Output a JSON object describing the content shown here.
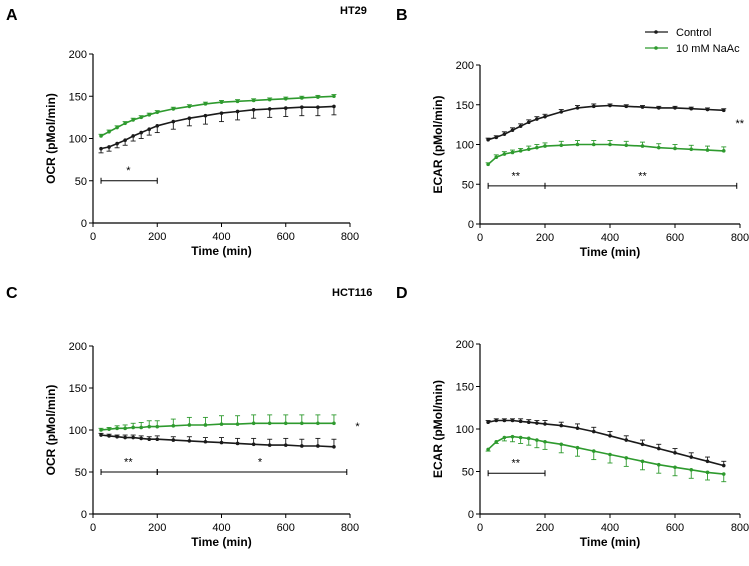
{
  "figure": {
    "cell_lines": [
      "HT29",
      "HCT116"
    ]
  },
  "legend": {
    "entries": [
      {
        "label": "Control",
        "color": "#1a1a1a"
      },
      {
        "label": "10 mM NaAc",
        "color": "#2e9a2e"
      }
    ]
  },
  "colors": {
    "control": "#1a1a1a",
    "naac": "#2e9a2e"
  },
  "chart_data": [
    {
      "panel": "A",
      "cell_line": "HT29",
      "type": "line",
      "xlabel": "Time (min)",
      "ylabel": "OCR (pMol/min)",
      "xlim": [
        0,
        800
      ],
      "ylim": [
        0,
        200
      ],
      "xticks": [
        "0",
        "200",
        "400",
        "600",
        "800"
      ],
      "yticks": [
        "0",
        "50",
        "100",
        "150",
        "200"
      ],
      "series": [
        {
          "name": "Control",
          "x": [
            25,
            50,
            75,
            100,
            125,
            150,
            175,
            200,
            250,
            300,
            350,
            400,
            450,
            500,
            550,
            600,
            650,
            700,
            750
          ],
          "y": [
            88,
            90,
            94,
            98,
            103,
            107,
            111,
            115,
            120,
            124,
            127,
            130,
            132,
            134,
            135,
            136,
            137,
            137,
            138
          ],
          "err": [
            5,
            5,
            5,
            6,
            6,
            7,
            7,
            8,
            9,
            9,
            10,
            10,
            10,
            10,
            10,
            10,
            10,
            10,
            10
          ]
        },
        {
          "name": "10 mM NaAc",
          "x": [
            25,
            50,
            75,
            100,
            125,
            150,
            175,
            200,
            250,
            300,
            350,
            400,
            450,
            500,
            550,
            600,
            650,
            700,
            750
          ],
          "y": [
            103,
            108,
            113,
            118,
            122,
            125,
            128,
            131,
            135,
            138,
            141,
            143,
            144,
            145,
            146,
            147,
            148,
            149,
            150
          ],
          "err": [
            2,
            2,
            2,
            2,
            2,
            2,
            2,
            2,
            2,
            2,
            2,
            2,
            2,
            2,
            2,
            2,
            2,
            2,
            2
          ]
        }
      ],
      "brackets": [
        {
          "x1": 25,
          "x2": 200,
          "y": 50,
          "label": "*",
          "label_x": 110,
          "label_y": 58
        }
      ],
      "side_annotation": null
    },
    {
      "panel": "B",
      "cell_line": "HT29",
      "type": "line",
      "xlabel": "Time (min)",
      "ylabel": "ECAR (pMol/min)",
      "xlim": [
        0,
        800
      ],
      "ylim": [
        0,
        200
      ],
      "xticks": [
        "0",
        "200",
        "400",
        "600",
        "800"
      ],
      "yticks": [
        "0",
        "50",
        "100",
        "150",
        "200"
      ],
      "series": [
        {
          "name": "Control",
          "x": [
            25,
            50,
            75,
            100,
            125,
            150,
            175,
            200,
            250,
            300,
            350,
            400,
            450,
            500,
            550,
            600,
            650,
            700,
            750
          ],
          "y": [
            106,
            109,
            113,
            118,
            123,
            128,
            132,
            135,
            141,
            146,
            148,
            149,
            148,
            147,
            146,
            146,
            145,
            144,
            143
          ],
          "err": [
            2,
            2,
            3,
            3,
            3,
            3,
            3,
            3,
            3,
            3,
            3,
            2,
            2,
            2,
            2,
            2,
            2,
            2,
            2
          ]
        },
        {
          "name": "10 mM NaAc",
          "x": [
            25,
            50,
            75,
            100,
            125,
            150,
            175,
            200,
            250,
            300,
            350,
            400,
            450,
            500,
            550,
            600,
            650,
            700,
            750
          ],
          "y": [
            75,
            84,
            88,
            90,
            92,
            94,
            96,
            98,
            99,
            100,
            100,
            100,
            99,
            98,
            96,
            95,
            94,
            93,
            92
          ],
          "err": [
            2,
            3,
            3,
            3,
            3,
            4,
            4,
            4,
            5,
            5,
            5,
            5,
            5,
            5,
            5,
            5,
            5,
            5,
            5
          ]
        }
      ],
      "brackets": [
        {
          "x1": 25,
          "x2": 200,
          "y": 48,
          "label": "**",
          "label_x": 110,
          "label_y": 56
        },
        {
          "x1": 200,
          "x2": 790,
          "y": 48,
          "label": "**",
          "label_x": 500,
          "label_y": 56
        }
      ],
      "side_annotation": {
        "label": "**",
        "x": 830,
        "y": 122
      }
    },
    {
      "panel": "C",
      "cell_line": "HCT116",
      "type": "line",
      "xlabel": "Time (min)",
      "ylabel": "OCR (pMol/min)",
      "xlim": [
        0,
        800
      ],
      "ylim": [
        0,
        200
      ],
      "xticks": [
        "0",
        "200",
        "400",
        "600",
        "800"
      ],
      "yticks": [
        "0",
        "50",
        "100",
        "150",
        "200"
      ],
      "series": [
        {
          "name": "Control",
          "x": [
            25,
            50,
            75,
            100,
            125,
            150,
            175,
            200,
            250,
            300,
            350,
            400,
            450,
            500,
            550,
            600,
            650,
            700,
            750
          ],
          "y": [
            94,
            93,
            92,
            91,
            91,
            90,
            89,
            89,
            88,
            87,
            86,
            85,
            84,
            83,
            82,
            82,
            81,
            81,
            80
          ],
          "err": [
            2,
            2,
            2,
            3,
            3,
            3,
            3,
            4,
            4,
            5,
            5,
            6,
            6,
            7,
            7,
            8,
            8,
            9,
            9
          ]
        },
        {
          "name": "10 mM NaAc",
          "x": [
            25,
            50,
            75,
            100,
            125,
            150,
            175,
            200,
            250,
            300,
            350,
            400,
            450,
            500,
            550,
            600,
            650,
            700,
            750
          ],
          "y": [
            100,
            101,
            102,
            102,
            103,
            103,
            104,
            104,
            105,
            106,
            106,
            107,
            107,
            108,
            108,
            108,
            108,
            108,
            108
          ],
          "err": [
            2,
            2,
            3,
            4,
            5,
            6,
            7,
            7,
            8,
            9,
            9,
            10,
            10,
            10,
            10,
            10,
            10,
            10,
            10
          ]
        }
      ],
      "brackets": [
        {
          "x1": 25,
          "x2": 200,
          "y": 50,
          "label": "**",
          "label_x": 110,
          "label_y": 58
        },
        {
          "x1": 200,
          "x2": 790,
          "y": 50,
          "label": "*",
          "label_x": 520,
          "label_y": 58
        }
      ],
      "side_annotation": {
        "label": "*",
        "x": 830,
        "y": 100
      }
    },
    {
      "panel": "D",
      "cell_line": "HCT116",
      "type": "line",
      "xlabel": "Time (min)",
      "ylabel": "ECAR (pMol/min)",
      "xlim": [
        0,
        800
      ],
      "ylim": [
        0,
        200
      ],
      "xticks": [
        "0",
        "200",
        "400",
        "600",
        "800"
      ],
      "yticks": [
        "0",
        "50",
        "100",
        "150",
        "200"
      ],
      "series": [
        {
          "name": "Control",
          "x": [
            25,
            50,
            75,
            100,
            125,
            150,
            175,
            200,
            250,
            300,
            350,
            400,
            450,
            500,
            550,
            600,
            650,
            700,
            750
          ],
          "y": [
            108,
            110,
            110,
            110,
            109,
            108,
            107,
            106,
            104,
            101,
            97,
            92,
            87,
            82,
            77,
            72,
            67,
            62,
            57
          ],
          "err": [
            2,
            2,
            2,
            2,
            3,
            3,
            3,
            4,
            4,
            5,
            5,
            5,
            5,
            5,
            5,
            5,
            5,
            5,
            5
          ]
        },
        {
          "name": "10 mM NaAc",
          "x": [
            25,
            50,
            75,
            100,
            125,
            150,
            175,
            200,
            250,
            300,
            350,
            400,
            450,
            500,
            550,
            600,
            650,
            700,
            750
          ],
          "y": [
            76,
            85,
            90,
            91,
            90,
            89,
            87,
            85,
            82,
            78,
            74,
            70,
            66,
            62,
            58,
            55,
            52,
            49,
            47
          ],
          "err": [
            2,
            2,
            4,
            6,
            7,
            8,
            9,
            9,
            10,
            10,
            10,
            10,
            10,
            10,
            10,
            10,
            10,
            9,
            9
          ]
        }
      ],
      "brackets": [
        {
          "x1": 25,
          "x2": 200,
          "y": 48,
          "label": "**",
          "label_x": 110,
          "label_y": 56
        }
      ],
      "side_annotation": null
    }
  ]
}
